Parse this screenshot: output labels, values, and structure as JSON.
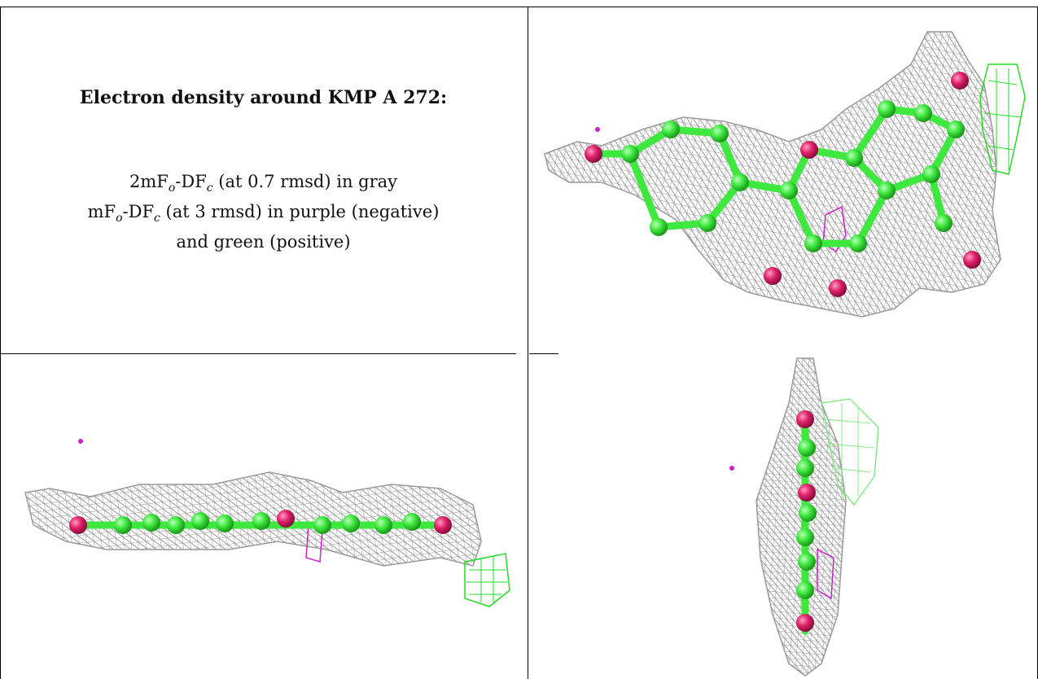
{
  "caption": {
    "title": "Electron density around KMP A 272:",
    "line1_prefix": "2mF",
    "line1_sub_o": "o",
    "line1_mid": "-DF",
    "line1_sub_c": "c",
    "line1_suffix": " (at 0.7 rmsd) in gray",
    "line2_prefix": "mF",
    "line2_sub_o": "o",
    "line2_mid": "-DF",
    "line2_sub_c": "c",
    "line2_suffix": " (at 3 rmsd) in purple (negative)",
    "line3": "and green (positive)"
  },
  "panels": [
    {
      "view": "top",
      "description_icon": "ligand-density-top-view"
    },
    {
      "view": "side",
      "description_icon": "ligand-density-side-view"
    },
    {
      "view": "end-on",
      "description_icon": "ligand-density-end-view"
    }
  ],
  "colors": {
    "mesh_gray": "#9a9a9a",
    "atom_carbon": "#3ee83e",
    "atom_oxygen": "#e0216a",
    "mesh_negative": "#cc22cc",
    "mesh_positive": "#22dd22",
    "grid": "#000000"
  }
}
